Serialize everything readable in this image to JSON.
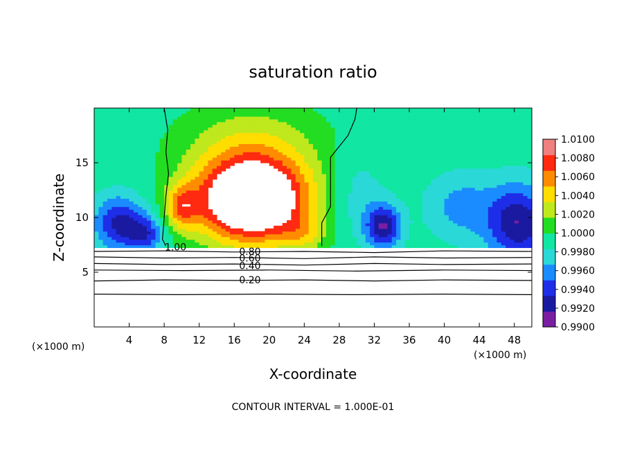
{
  "chart_data": {
    "type": "heatmap",
    "title": "saturation ratio",
    "xlabel": "X-coordinate",
    "ylabel": "Z-coordinate",
    "x_unit_note_left": "(×1000 m)",
    "x_unit_note_right": "(×1000 m)",
    "footer": "CONTOUR INTERVAL = 1.000E-01",
    "xlim": [
      0,
      50
    ],
    "ylim": [
      0,
      20
    ],
    "x_ticks": [
      4,
      8,
      12,
      16,
      20,
      24,
      28,
      32,
      36,
      40,
      44,
      48
    ],
    "y_ticks": [
      5,
      10,
      15
    ],
    "colorbar": {
      "min": 0.99,
      "max": 1.01,
      "levels": [
        0.99,
        0.992,
        0.994,
        0.996,
        0.998,
        1.0,
        1.002,
        1.004,
        1.006,
        1.008,
        1.01
      ],
      "labels": [
        "1.0100",
        "1.0080",
        "1.0060",
        "1.0040",
        "1.0020",
        "1.0000",
        "0.9980",
        "0.9960",
        "0.9940",
        "0.9920",
        "0.9900"
      ]
    },
    "field_blobs": [
      {
        "x": 18,
        "y": 11.5,
        "sx": 6.5,
        "sy": 3.8,
        "amp": 0.0165
      },
      {
        "x": 10,
        "y": 11.0,
        "sx": 1.8,
        "sy": 2.0,
        "amp": 0.006
      },
      {
        "x": 18,
        "y": 16.5,
        "sx": 8.0,
        "sy": 4.0,
        "amp": 0.004
      },
      {
        "x": 3,
        "y": 9.5,
        "sx": 3.0,
        "sy": 2.5,
        "amp": -0.007
      },
      {
        "x": 6,
        "y": 8.5,
        "sx": 2.0,
        "sy": 1.6,
        "amp": -0.005
      },
      {
        "x": 33,
        "y": 9.2,
        "sx": 2.0,
        "sy": 2.0,
        "amp": -0.008
      },
      {
        "x": 30,
        "y": 12.0,
        "sx": 3.0,
        "sy": 4.0,
        "amp": -0.002
      },
      {
        "x": 48.5,
        "y": 9.5,
        "sx": 3.5,
        "sy": 3.5,
        "amp": -0.008
      },
      {
        "x": 42,
        "y": 11.0,
        "sx": 4.0,
        "sy": 3.0,
        "amp": -0.0035
      },
      {
        "x": 24,
        "y": 8.5,
        "sx": 2.5,
        "sy": 1.6,
        "amp": 0.003
      }
    ],
    "contours": [
      {
        "label": "1.00",
        "label_x": 9.3,
        "label_y": 7.3,
        "points": [
          [
            8.0,
            20
          ],
          [
            8.4,
            18
          ],
          [
            8.2,
            16
          ],
          [
            8.5,
            14
          ],
          [
            8.2,
            12
          ],
          [
            8.0,
            10
          ],
          [
            7.8,
            8
          ],
          [
            8.2,
            7.4
          ]
        ]
      },
      {
        "label": "",
        "label_x": null,
        "label_y": null,
        "points": [
          [
            30.0,
            20
          ],
          [
            29.8,
            19
          ],
          [
            29.0,
            17.5
          ],
          [
            27.0,
            15.5
          ],
          [
            27.0,
            14
          ],
          [
            27.0,
            11
          ],
          [
            26.0,
            9.5
          ],
          [
            26.0,
            7.4
          ]
        ]
      },
      {
        "label": "0.80",
        "label_x": 17.8,
        "label_y": 6.9,
        "points": [
          [
            0,
            6.9
          ],
          [
            8,
            6.95
          ],
          [
            16,
            6.85
          ],
          [
            24,
            6.9
          ],
          [
            32,
            6.8
          ],
          [
            40,
            6.95
          ],
          [
            50,
            6.9
          ]
        ]
      },
      {
        "label": "0.60",
        "label_x": 17.8,
        "label_y": 6.3,
        "points": [
          [
            0,
            6.4
          ],
          [
            8,
            6.3
          ],
          [
            16,
            6.35
          ],
          [
            24,
            6.25
          ],
          [
            32,
            6.4
          ],
          [
            40,
            6.3
          ],
          [
            50,
            6.35
          ]
        ]
      },
      {
        "label": "0.40",
        "label_x": 17.8,
        "label_y": 5.6,
        "points": [
          [
            0,
            5.8
          ],
          [
            8,
            5.7
          ],
          [
            16,
            5.75
          ],
          [
            24,
            5.65
          ],
          [
            32,
            5.8
          ],
          [
            40,
            5.7
          ],
          [
            50,
            5.75
          ]
        ]
      },
      {
        "label": "0.20",
        "label_x": 17.8,
        "label_y": 4.3,
        "points": [
          [
            0,
            4.2
          ],
          [
            8,
            4.3
          ],
          [
            16,
            4.25
          ],
          [
            24,
            4.3
          ],
          [
            32,
            4.2
          ],
          [
            40,
            4.3
          ],
          [
            50,
            4.25
          ]
        ]
      },
      {
        "label": "",
        "label_x": null,
        "label_y": null,
        "points": [
          [
            0,
            5.2
          ],
          [
            10,
            5.15
          ],
          [
            20,
            5.2
          ],
          [
            30,
            5.1
          ],
          [
            40,
            5.2
          ],
          [
            50,
            5.15
          ]
        ]
      },
      {
        "label": "",
        "label_x": null,
        "label_y": null,
        "points": [
          [
            0,
            3.0
          ],
          [
            10,
            2.95
          ],
          [
            20,
            3.0
          ],
          [
            30,
            2.95
          ],
          [
            40,
            3.0
          ],
          [
            50,
            2.95
          ]
        ]
      }
    ]
  }
}
